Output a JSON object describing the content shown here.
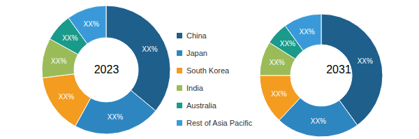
{
  "chart_data": [
    {
      "type": "pie",
      "title": "2023",
      "categories": [
        "China",
        "Japan",
        "South Korea",
        "India",
        "Australia",
        "Rest of Asia Pacific"
      ],
      "values": [
        36,
        22,
        15,
        10,
        7,
        10
      ],
      "value_labels": [
        "XX%",
        "XX%",
        "XX%",
        "XX%",
        "XX%",
        "XX%"
      ],
      "colors": [
        "#1f5f8b",
        "#2e86c1",
        "#f39c1f",
        "#9bbb59",
        "#1a9a8a",
        "#3a9ad9"
      ],
      "data_labels": true
    },
    {
      "type": "pie",
      "title": "2031",
      "categories": [
        "China",
        "Japan",
        "South Korea",
        "India",
        "Australia",
        "Rest of Asia Pacific"
      ],
      "values": [
        40,
        22,
        13,
        9,
        6,
        10
      ],
      "value_labels": [
        "XX%",
        "XX%",
        "XX%",
        "XX%",
        "XX%",
        "XX%"
      ],
      "colors": [
        "#1f5f8b",
        "#2e86c1",
        "#f39c1f",
        "#9bbb59",
        "#1a9a8a",
        "#3a9ad9"
      ],
      "data_labels": true
    }
  ]
}
